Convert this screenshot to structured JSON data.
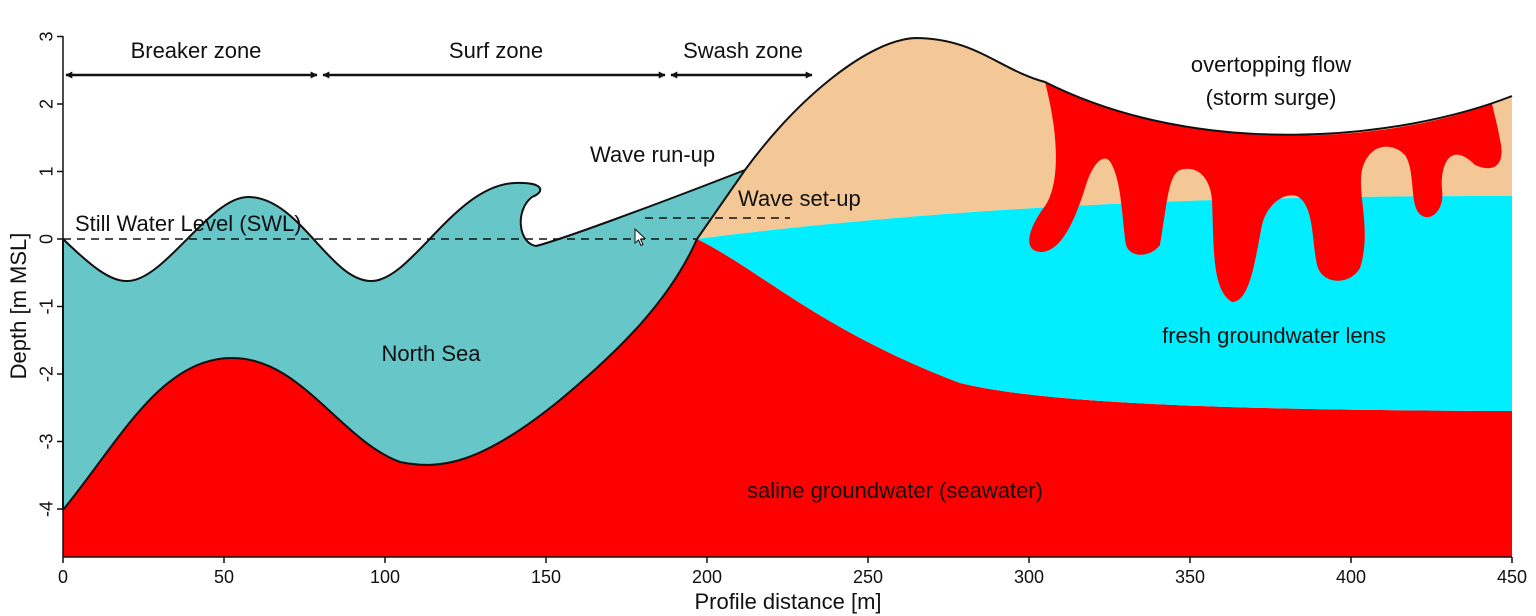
{
  "colors": {
    "sea": "#66c6c8",
    "saline": "#ff0000",
    "dune": "#f3c896",
    "fresh": "#00eeff",
    "line": "#111111"
  },
  "x_axis": {
    "label": "Profile distance [m]",
    "ticks": [
      "0",
      "50",
      "100",
      "150",
      "200",
      "250",
      "300",
      "350",
      "400",
      "450"
    ],
    "range": [
      0,
      450
    ]
  },
  "y_axis": {
    "label": "Depth [m MSL]",
    "ticks": [
      "3",
      "2",
      "1",
      "0",
      "-1",
      "-2",
      "-3",
      "-4"
    ],
    "range": [
      -4.7,
      3
    ]
  },
  "zones": {
    "breaker": "Breaker zone",
    "surf": "Surf zone",
    "swash": "Swash zone"
  },
  "labels": {
    "swl": "Still Water Level (SWL)",
    "runup": "Wave run-up",
    "setup": "Wave set-up",
    "overtopping_1": "overtopping flow",
    "overtopping_2": "(storm surge)",
    "north_sea": "North Sea",
    "fresh_lens": "fresh groundwater lens",
    "saline": "saline groundwater (seawater)"
  }
}
